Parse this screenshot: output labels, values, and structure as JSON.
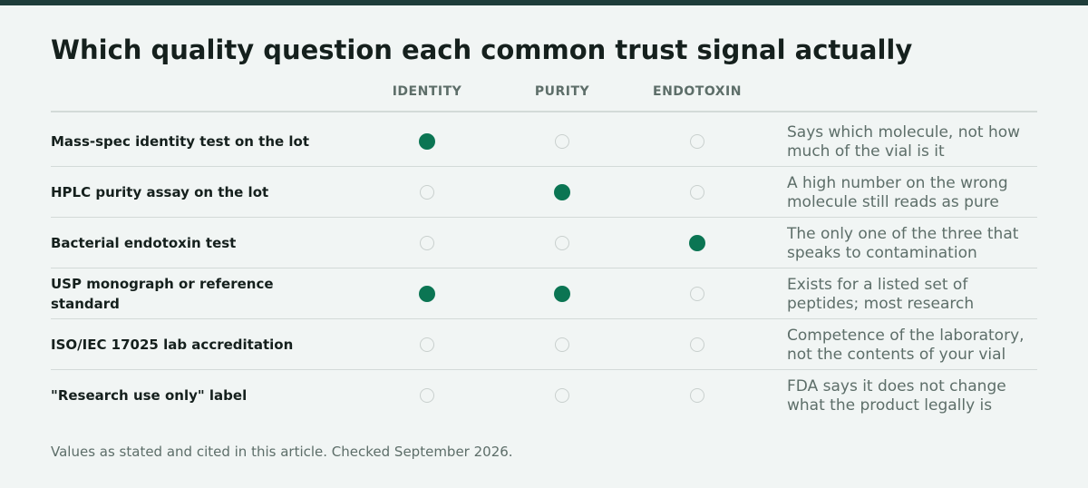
{
  "header": {
    "title": "Which quality question each common trust signal actually"
  },
  "colors": {
    "accent": "#0b7553",
    "top_bar": "#1e3d3a",
    "empty_dot": "#c9d0ce",
    "background": "#f1f5f4"
  },
  "chart_data": {
    "type": "table",
    "title": "Which quality question each common trust signal actually",
    "columns": [
      "IDENTITY",
      "PURITY",
      "ENDOTOXIN"
    ],
    "rows": [
      {
        "label": "Mass-spec identity test on the lot",
        "checks": [
          true,
          false,
          false
        ],
        "note": "Says which molecule, not how much of the vial is it"
      },
      {
        "label": "HPLC purity assay on the lot",
        "checks": [
          false,
          true,
          false
        ],
        "note": "A high number on the wrong molecule still reads as pure"
      },
      {
        "label": "Bacterial endotoxin test",
        "checks": [
          false,
          false,
          true
        ],
        "note": "The only one of the three that speaks to contamination"
      },
      {
        "label": "USP monograph or reference standard",
        "checks": [
          true,
          true,
          false
        ],
        "note": "Exists for a listed set of peptides; most research"
      },
      {
        "label": "ISO/IEC 17025 lab accreditation",
        "checks": [
          false,
          false,
          false
        ],
        "note": "Competence of the laboratory, not the contents of your vial"
      },
      {
        "label": "\"Research use only\" label",
        "checks": [
          false,
          false,
          false
        ],
        "note": "FDA says it does not change what the product legally is"
      }
    ]
  },
  "footer": {
    "note": "Values as stated and cited in this article. Checked September 2026."
  }
}
